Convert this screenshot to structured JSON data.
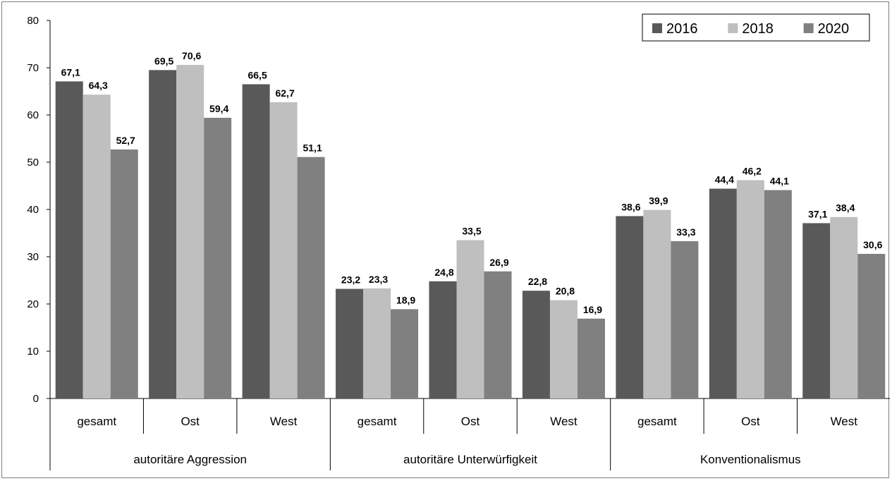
{
  "chart_data": {
    "type": "bar",
    "ylim": [
      0,
      80
    ],
    "yticks": [
      0,
      10,
      20,
      30,
      40,
      50,
      60,
      70,
      80
    ],
    "grid": false,
    "legend_position": "top-right",
    "colors": [
      "#595959",
      "#bfbfbf",
      "#808080"
    ],
    "groups": [
      {
        "label": "autoritäre Aggression",
        "categories": [
          "gesamt",
          "Ost",
          "West"
        ]
      },
      {
        "label": "autoritäre Unterwürfigkeit",
        "categories": [
          "gesamt",
          "Ost",
          "West"
        ]
      },
      {
        "label": "Konventionalismus",
        "categories": [
          "gesamt",
          "Ost",
          "West"
        ]
      }
    ],
    "series": [
      {
        "name": "2016",
        "values": [
          67.1,
          69.5,
          66.5,
          23.2,
          24.8,
          22.8,
          38.6,
          44.4,
          37.1
        ],
        "labels": [
          "67,1",
          "69,5",
          "66,5",
          "23,2",
          "24,8",
          "22,8",
          "38,6",
          "44,4",
          "37,1"
        ]
      },
      {
        "name": "2018",
        "values": [
          64.3,
          70.6,
          62.7,
          23.3,
          33.5,
          20.8,
          39.9,
          46.2,
          38.4
        ],
        "labels": [
          "64,3",
          "70,6",
          "62,7",
          "23,3",
          "33,5",
          "20,8",
          "39,9",
          "46,2",
          "38,4"
        ]
      },
      {
        "name": "2020",
        "values": [
          52.7,
          59.4,
          51.1,
          18.9,
          26.9,
          16.9,
          33.3,
          44.1,
          30.6
        ],
        "labels": [
          "52,7",
          "59,4",
          "51,1",
          "18,9",
          "26,9",
          "16,9",
          "33,3",
          "44,1",
          "30,6"
        ]
      }
    ]
  }
}
